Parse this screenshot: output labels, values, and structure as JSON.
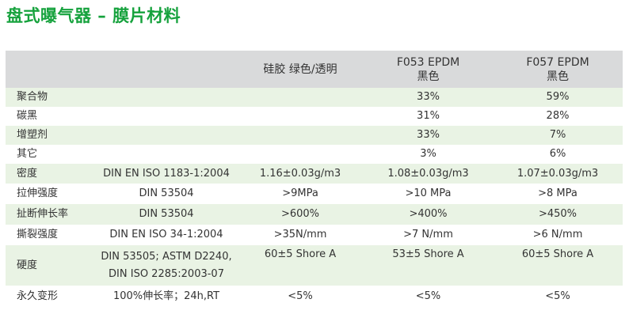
{
  "title": "盘式曝气器 – 膜片材料",
  "header": [
    "",
    "",
    "硅胶 绿色/透明",
    "F053 EPDM\n黑色",
    "F057 EPDM\n黑色"
  ],
  "header_lines": {
    "col2": "硅胶 绿色/透明",
    "col3_line1": "F053 EPDM",
    "col3_line2": "黑色",
    "col4_line1": "F057 EPDM",
    "col4_line2": "黑色"
  },
  "rows": [
    {
      "property": "聚合物",
      "standard": "",
      "silicone": "",
      "f053": "33%",
      "f057": "59%"
    },
    {
      "property": "碳黑",
      "standard": "",
      "silicone": "",
      "f053": "31%",
      "f057": "28%"
    },
    {
      "property": "增塑剂",
      "standard": "",
      "silicone": "",
      "f053": "33%",
      "f057": "7%"
    },
    {
      "property": "其它",
      "standard": "",
      "silicone": "",
      "f053": "3%",
      "f057": "6%"
    },
    {
      "property": "密度",
      "standard": "DIN EN ISO 1183-1:2004",
      "silicone": "1.16±0.03g/m3",
      "f053": "1.08±0.03g/m3",
      "f057": "1.07±0.03g/m3"
    },
    {
      "property": "拉伸强度",
      "standard": "DIN 53504",
      "silicone": ">9MPa",
      "f053": ">10  MPa",
      "f057": ">8  MPa"
    },
    {
      "property": "扯断伸长率",
      "standard": "DIN 53504",
      "silicone": ">600%",
      "f053": ">400%",
      "f057": ">450%"
    },
    {
      "property": "撕裂强度",
      "standard": "DIN EN ISO 34-1:2004",
      "silicone": ">35N/mm",
      "f053": ">7  N/mm",
      "f057": ">6  N/mm"
    },
    {
      "property": "硬度",
      "standard_line1": "DIN 53505; ASTM D2240,",
      "standard_line2": "DIN ISO 2285:2003-07",
      "silicone": "60±5 Shore A",
      "f053": "53±5  Shore A",
      "f057": "60±5 Shore A"
    },
    {
      "property": "永久变形",
      "standard": "100%伸长率；24h,RT",
      "silicone": "<5%",
      "f053": "<5%",
      "f057": "<5%"
    }
  ],
  "colors": {
    "title": "#16a23d",
    "header_bg": "#d9dadb",
    "odd_row_bg": "#e9f3e4",
    "even_row_bg": "#ffffff",
    "text": "#333333"
  }
}
